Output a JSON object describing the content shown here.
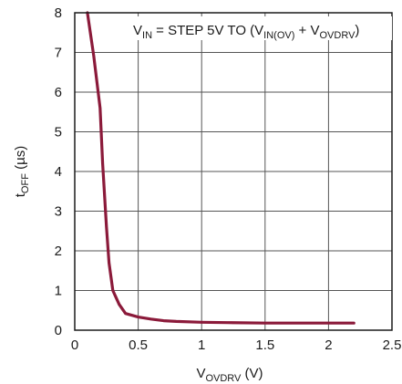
{
  "chart_data": {
    "type": "line",
    "xlim": [
      0,
      2.5
    ],
    "ylim": [
      0,
      8
    ],
    "x_ticks": [
      0,
      0.5,
      1,
      1.5,
      2,
      2.5
    ],
    "y_ticks": [
      0,
      1,
      2,
      3,
      4,
      5,
      6,
      7,
      8
    ],
    "x_tick_labels": [
      "0",
      "0.5",
      "1",
      "1.5",
      "2",
      "2.5"
    ],
    "y_tick_labels": [
      "0",
      "1",
      "2",
      "3",
      "4",
      "5",
      "6",
      "7",
      "8"
    ],
    "grid": true,
    "xlabel": {
      "main": "V",
      "sub": "OVDRV",
      "unit": " (V)"
    },
    "ylabel": {
      "main": "t",
      "sub": "OFF",
      "unit": " (µs)"
    },
    "annotation": {
      "p1": "V",
      "s1": "IN",
      "p2": " = STEP 5V TO (V",
      "s2": "IN(OV)",
      "p3": " + V",
      "s3": "OVDRV",
      "p4": ")"
    },
    "series": [
      {
        "color": "#8b1a3a",
        "x": [
          0.1,
          0.15,
          0.2,
          0.22,
          0.25,
          0.27,
          0.3,
          0.35,
          0.4,
          0.5,
          0.6,
          0.7,
          0.8,
          1.0,
          1.2,
          1.5,
          1.8,
          2.0,
          2.2
        ],
        "y": [
          8.0,
          6.9,
          5.6,
          4.2,
          2.6,
          1.7,
          1.0,
          0.65,
          0.42,
          0.33,
          0.28,
          0.24,
          0.22,
          0.2,
          0.19,
          0.18,
          0.18,
          0.18,
          0.18
        ]
      }
    ]
  }
}
